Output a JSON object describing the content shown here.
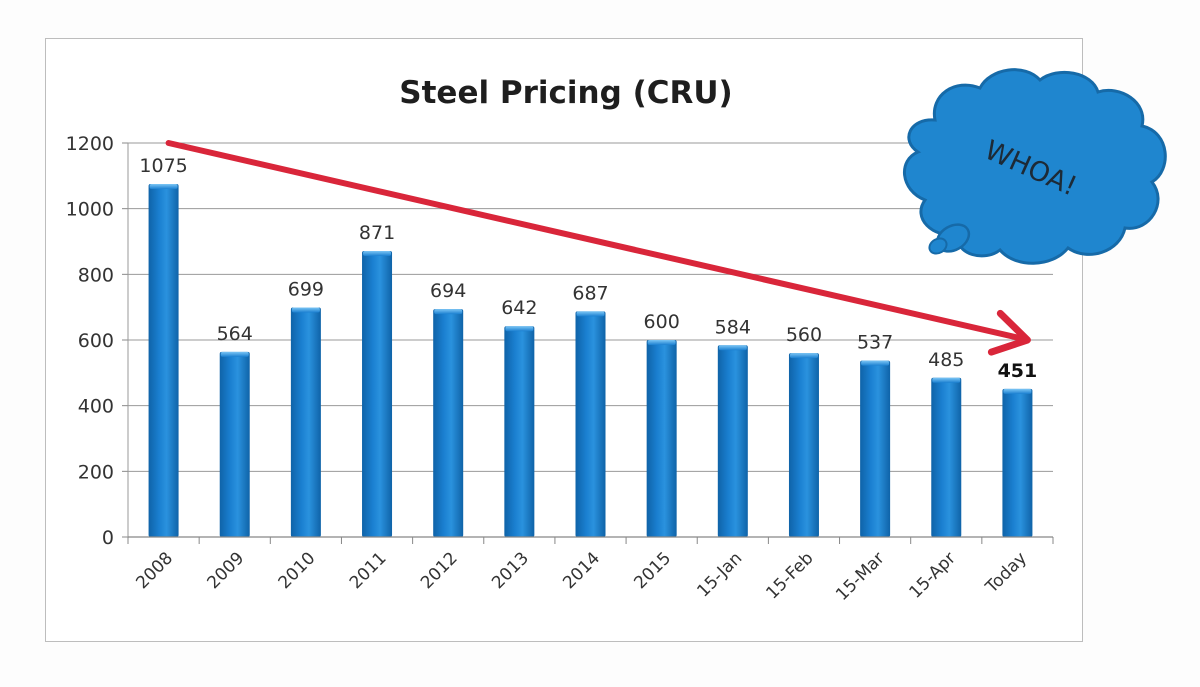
{
  "chart_data": {
    "type": "bar",
    "title": "Steel Pricing (CRU)",
    "xlabel": "",
    "ylabel": "",
    "categories": [
      "2008",
      "2009",
      "2010",
      "2011",
      "2012",
      "2013",
      "2014",
      "2015",
      "15-Jan",
      "15-Feb",
      "15-Mar",
      "15-Apr",
      "Today"
    ],
    "values": [
      1075,
      564,
      699,
      871,
      694,
      642,
      687,
      600,
      584,
      560,
      537,
      485,
      451
    ],
    "data_labels": [
      "1075",
      "564",
      "699",
      "871",
      "694",
      "642",
      "687",
      "600",
      "584",
      "560",
      "537",
      "485",
      "451"
    ],
    "highlighted_label_index": 12,
    "ylim": [
      0,
      1200
    ],
    "yticks": [
      0,
      200,
      400,
      600,
      800,
      1000,
      1200
    ],
    "ytick_labels": [
      "0",
      "200",
      "400",
      "600",
      "800",
      "1000",
      "1200"
    ],
    "grid": true,
    "legend": "none",
    "bar_color": "#1a7fd0",
    "annotations": [
      {
        "type": "arrow",
        "description": "downward trend arrow",
        "from": {
          "category": "2008",
          "value": 1200
        },
        "to": {
          "category": "Today",
          "value": 600
        },
        "color": "#d9263a"
      },
      {
        "type": "callout",
        "shape": "thought-cloud",
        "text": "WHOA!",
        "color": "#1f86cf",
        "position": "top-right"
      }
    ]
  }
}
